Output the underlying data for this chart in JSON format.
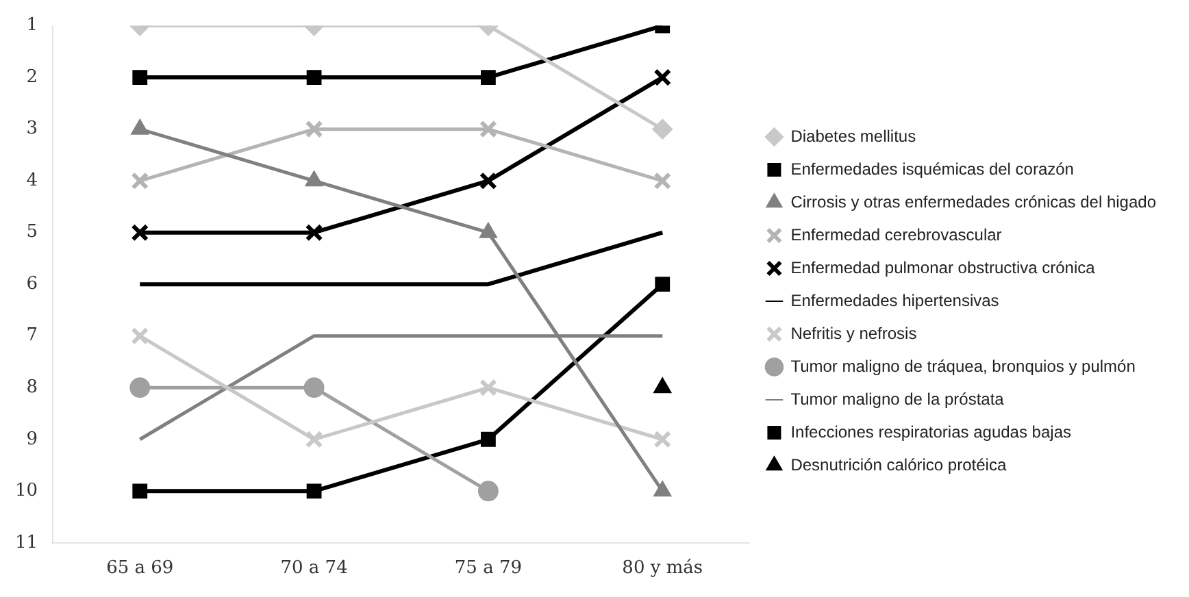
{
  "chart_data": {
    "type": "line",
    "categories": [
      "65 a 69",
      "70 a 74",
      "75 a 79",
      "80 y más"
    ],
    "ylim": [
      11,
      1
    ],
    "yticks": [
      1,
      2,
      3,
      4,
      5,
      6,
      7,
      8,
      9,
      10,
      11
    ],
    "grid": false,
    "legend": "right",
    "series": [
      {
        "name": "Diabetes mellitus",
        "color": "#c8c8c8",
        "marker": "diamond",
        "values": [
          1,
          1,
          1,
          3
        ]
      },
      {
        "name": "Enfermedades isquémicas del corazón",
        "color": "#000000",
        "marker": "square",
        "values": [
          2,
          2,
          2,
          1
        ]
      },
      {
        "name": "Cirrosis y otras enfermedades crónicas del higado",
        "color": "#808080",
        "marker": "triangle",
        "values": [
          3,
          4,
          5,
          10
        ]
      },
      {
        "name": "Enfermedad cerebrovascular",
        "color": "#b4b4b4",
        "marker": "cross",
        "values": [
          4,
          3,
          3,
          4
        ]
      },
      {
        "name": "Enfermedad pulmonar obstructiva crónica",
        "color": "#000000",
        "marker": "cross",
        "values": [
          5,
          5,
          4,
          2
        ]
      },
      {
        "name": "Enfermedades hipertensivas",
        "color": "#000000",
        "marker": "none",
        "values": [
          6,
          6,
          6,
          5
        ]
      },
      {
        "name": "Nefritis y nefrosis",
        "color": "#c8c8c8",
        "marker": "cross",
        "values": [
          7,
          9,
          8,
          9
        ]
      },
      {
        "name": "Tumor maligno de tráquea, bronquios y pulmón",
        "color": "#a0a0a0",
        "marker": "circle",
        "values": [
          8,
          8,
          10,
          null
        ]
      },
      {
        "name": "Tumor maligno de la próstata",
        "color": "#808080",
        "marker": "none",
        "values": [
          9,
          7,
          7,
          7
        ]
      },
      {
        "name": "Infecciones respiratorias agudas bajas",
        "color": "#000000",
        "marker": "square",
        "values": [
          10,
          10,
          9,
          6
        ]
      },
      {
        "name": "Desnutrición calórico protéica",
        "color": "#000000",
        "marker": "triangle",
        "values": [
          null,
          null,
          null,
          8
        ]
      }
    ]
  }
}
